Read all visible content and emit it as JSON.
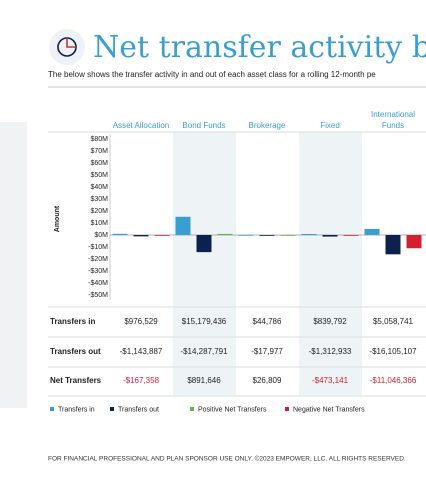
{
  "chart_data": {
    "type": "bar",
    "title": "Net transfer activity by",
    "subtitle": "The below shows the transfer activity in and out of each asset class for a rolling 12-month pe",
    "y_label": "Amount",
    "categories": [
      "Asset Allocation",
      "Bond Funds",
      "Brokerage",
      "Fixed",
      "International Funds"
    ],
    "ylim": [
      -50000000,
      80000000
    ],
    "yticks": [
      {
        "value": 80000000,
        "label": "$80M"
      },
      {
        "value": 70000000,
        "label": "$70M"
      },
      {
        "value": 60000000,
        "label": "$60M"
      },
      {
        "value": 50000000,
        "label": "$50M"
      },
      {
        "value": 40000000,
        "label": "$40M"
      },
      {
        "value": 30000000,
        "label": "$30M"
      },
      {
        "value": 20000000,
        "label": "$20M"
      },
      {
        "value": 10000000,
        "label": "$10M"
      },
      {
        "value": 0,
        "label": "$0M"
      },
      {
        "value": -10000000,
        "label": "-$10M"
      },
      {
        "value": -20000000,
        "label": "-$20M"
      },
      {
        "value": -30000000,
        "label": "-$30M"
      },
      {
        "value": -40000000,
        "label": "-$40M"
      },
      {
        "value": -50000000,
        "label": "-$50M"
      }
    ],
    "series": [
      {
        "name": "Transfers in",
        "color": "#3a9fd0",
        "values": [
          976529,
          15179436,
          44786,
          839792,
          5058741
        ],
        "value_labels": [
          "$976,529",
          "$15,179,436",
          "$44,786",
          "$839,792",
          "$5,058,741"
        ]
      },
      {
        "name": "Transfers out",
        "color": "#0d2150",
        "values": [
          -1143887,
          -14287791,
          -17977,
          -1312933,
          -16105107
        ],
        "value_labels": [
          "-$1,143,887",
          "-$14,287,791",
          "-$17,977",
          "-$1,312,933",
          "-$16,105,107"
        ]
      },
      {
        "name": "Net Transfers",
        "color": "#6ab04c",
        "negative_color": "#d22030",
        "values": [
          -167358,
          891646,
          26809,
          -473141,
          -11046366
        ],
        "value_labels": [
          "-$167,358",
          "$891,646",
          "$26,809",
          "-$473,141",
          "-$11,046,366"
        ]
      }
    ],
    "legend": [
      {
        "name": "Transfers in",
        "color": "#3a9fd0"
      },
      {
        "name": "Transfers out",
        "color": "#0d2150"
      },
      {
        "name": "Positive Net Transfers",
        "color": "#6ab04c"
      },
      {
        "name": "Negative Net Transfers",
        "color": "#d22030"
      }
    ],
    "footer": "FOR FINANCIAL PROFESSIONAL AND PLAN SPONSOR USE ONLY. ©2023 EMPOWER, LLC. ALL RIGHTS RESERVED."
  }
}
